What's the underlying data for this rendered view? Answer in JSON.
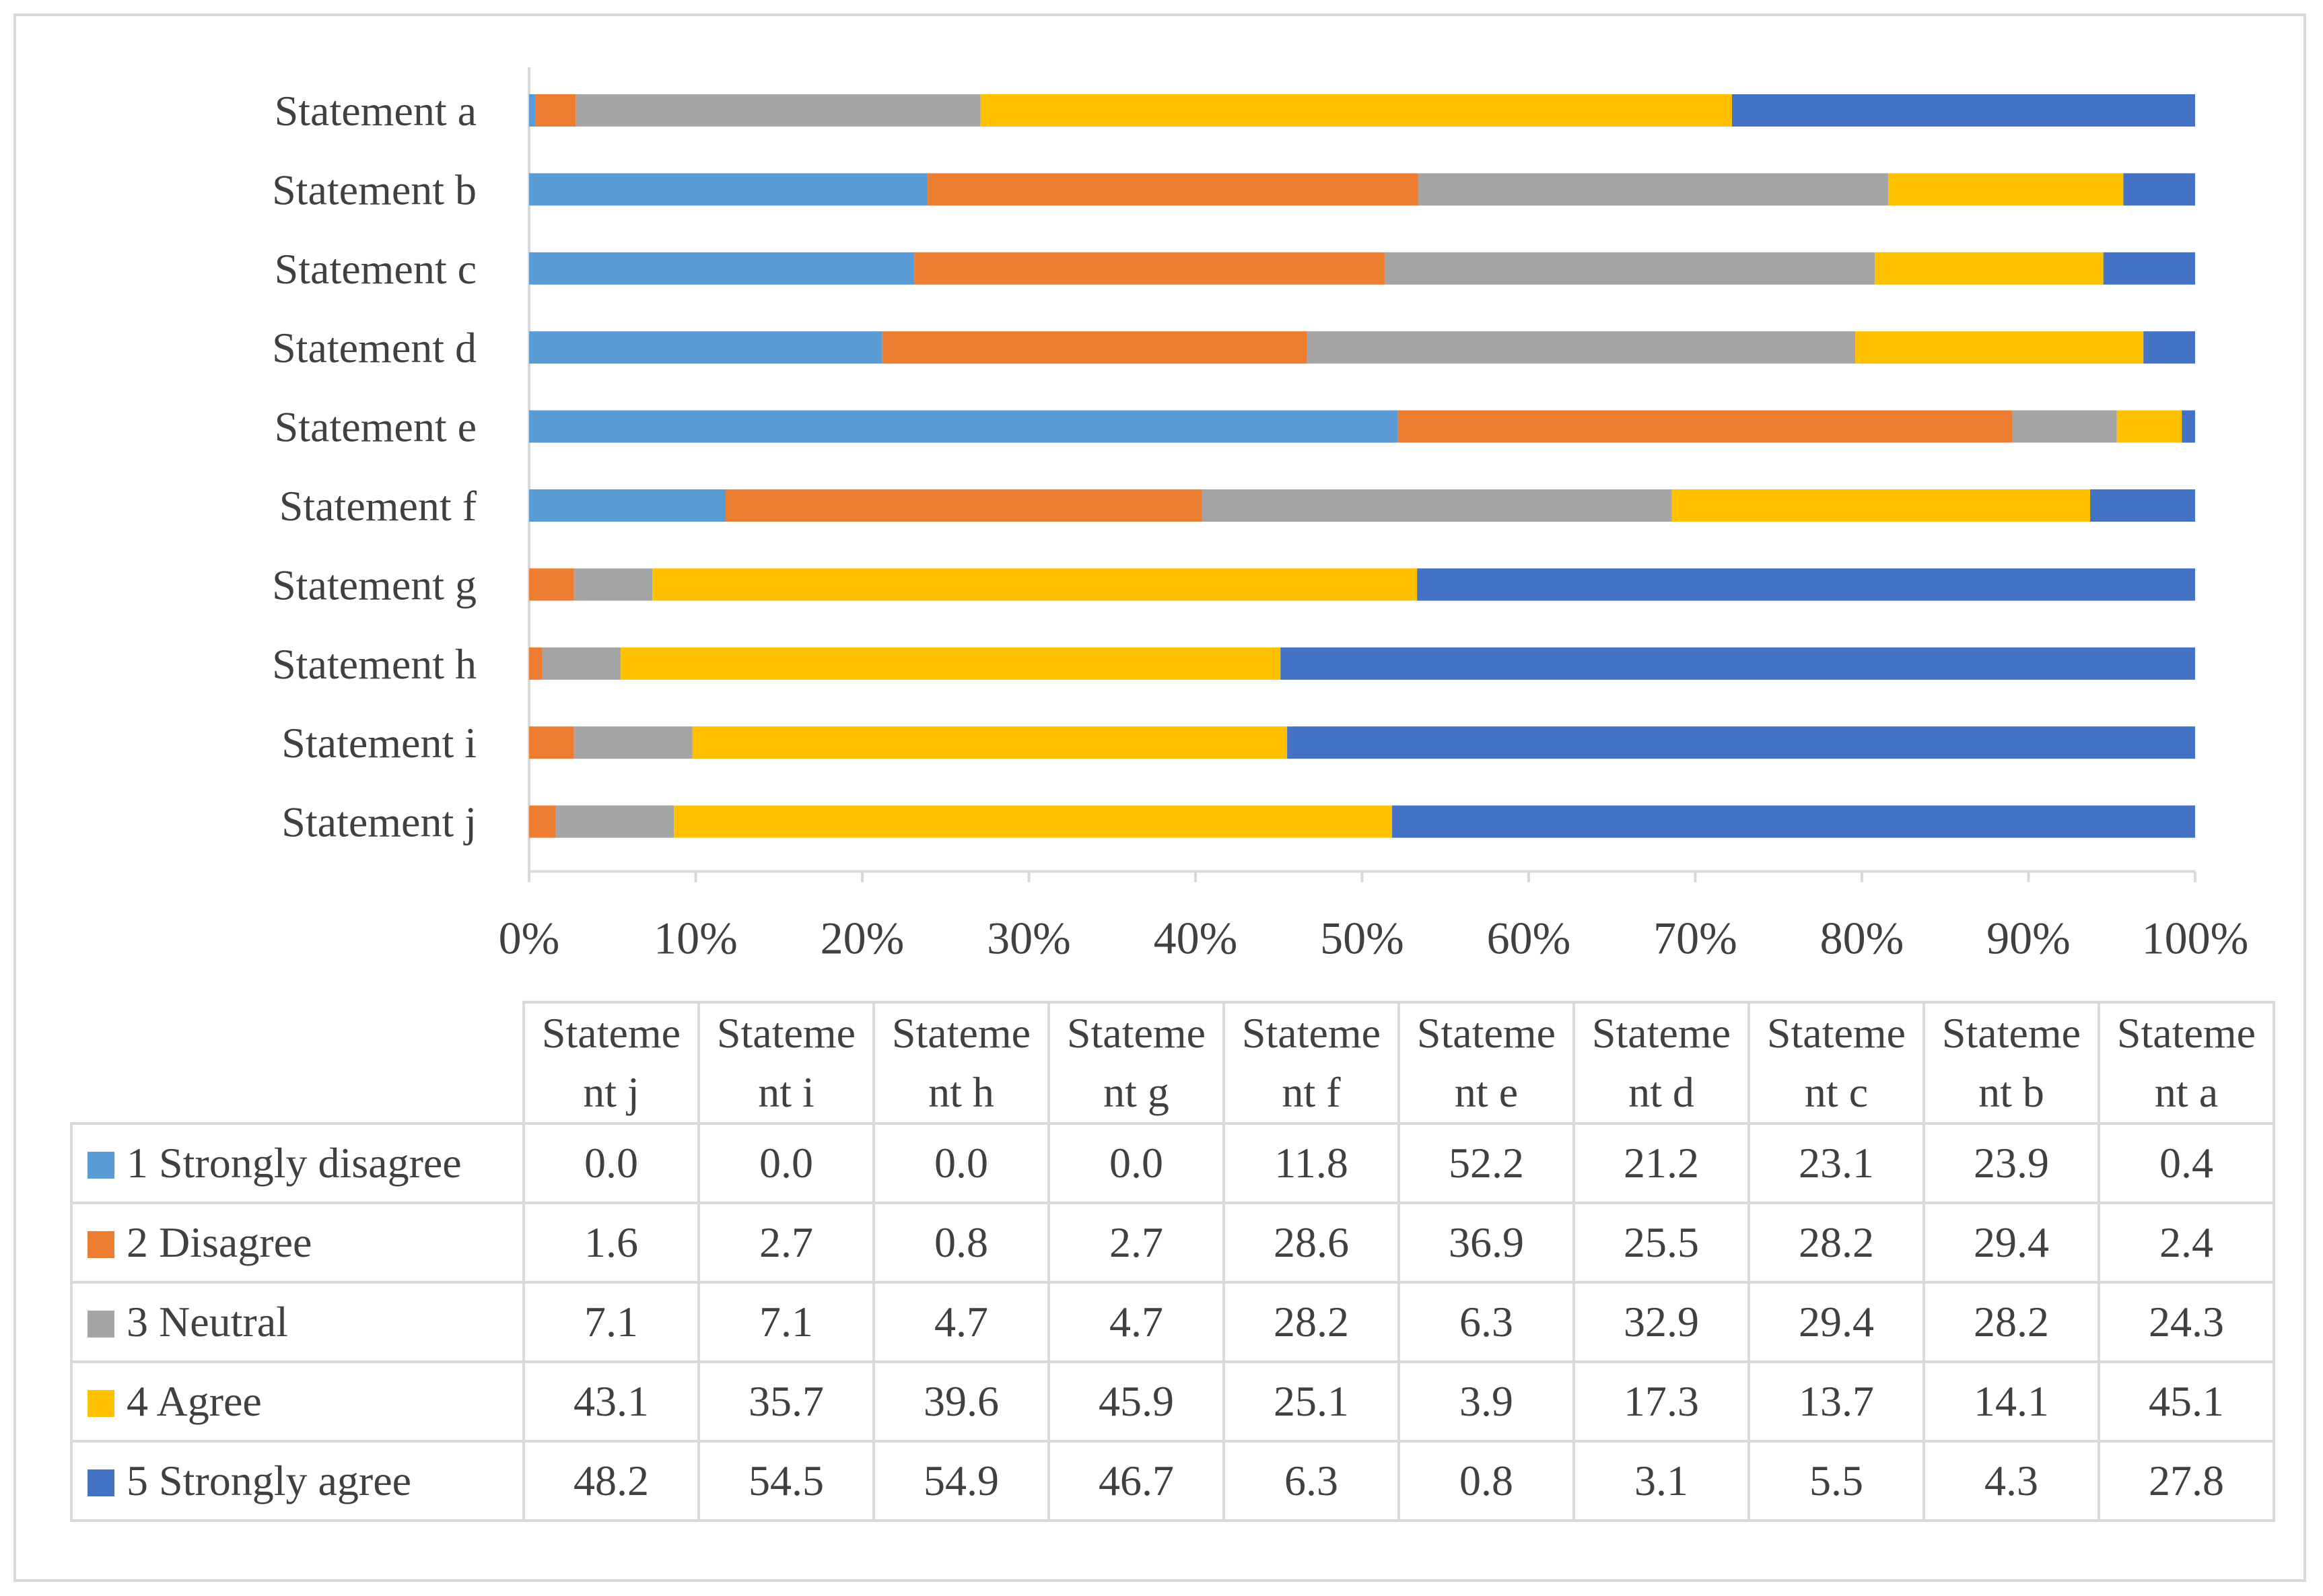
{
  "chart_data": {
    "type": "stacked-bar-100",
    "orientation": "horizontal",
    "categories": [
      "Statement a",
      "Statement b",
      "Statement c",
      "Statement d",
      "Statement e",
      "Statement f",
      "Statement g",
      "Statement h",
      "Statement i",
      "Statement j"
    ],
    "series": [
      {
        "name": "1 Strongly disagree",
        "color": "#5b9bd5",
        "values": [
          0.4,
          23.9,
          23.1,
          21.2,
          52.2,
          11.8,
          0.0,
          0.0,
          0.0,
          0.0
        ]
      },
      {
        "name": "2 Disagree",
        "color": "#ed7d31",
        "values": [
          2.4,
          29.4,
          28.2,
          25.5,
          36.9,
          28.6,
          2.7,
          0.8,
          2.7,
          1.6
        ]
      },
      {
        "name": "3 Neutral",
        "color": "#a5a5a5",
        "values": [
          24.3,
          28.2,
          29.4,
          32.9,
          6.3,
          28.2,
          4.7,
          4.7,
          7.1,
          7.1
        ]
      },
      {
        "name": "4 Agree",
        "color": "#ffc000",
        "values": [
          45.1,
          14.1,
          13.7,
          17.3,
          3.9,
          25.1,
          45.9,
          39.6,
          35.7,
          43.1
        ]
      },
      {
        "name": "5 Strongly agree",
        "color": "#4472c4",
        "values": [
          27.8,
          4.3,
          5.5,
          3.1,
          0.8,
          6.3,
          46.7,
          54.9,
          54.5,
          48.2
        ]
      }
    ],
    "x_ticks": [
      "0%",
      "10%",
      "20%",
      "30%",
      "40%",
      "50%",
      "60%",
      "70%",
      "80%",
      "90%",
      "100%"
    ],
    "xlim": [
      0,
      100
    ],
    "grid": false,
    "legend": "data-table-below",
    "table": {
      "columns": [
        "Stateme nt j",
        "Stateme nt i",
        "Stateme nt h",
        "Stateme nt g",
        "Stateme nt f",
        "Stateme nt e",
        "Stateme nt d",
        "Stateme nt c",
        "Stateme nt b",
        "Stateme nt a"
      ],
      "rows": [
        {
          "label": "1 Strongly disagree",
          "color": "#5b9bd5",
          "values": [
            "0.0",
            "0.0",
            "0.0",
            "0.0",
            "11.8",
            "52.2",
            "21.2",
            "23.1",
            "23.9",
            "0.4"
          ]
        },
        {
          "label": "2 Disagree",
          "color": "#ed7d31",
          "values": [
            "1.6",
            "2.7",
            "0.8",
            "2.7",
            "28.6",
            "36.9",
            "25.5",
            "28.2",
            "29.4",
            "2.4"
          ]
        },
        {
          "label": "3 Neutral",
          "color": "#a5a5a5",
          "values": [
            "7.1",
            "7.1",
            "4.7",
            "4.7",
            "28.2",
            "6.3",
            "32.9",
            "29.4",
            "28.2",
            "24.3"
          ]
        },
        {
          "label": "4 Agree",
          "color": "#ffc000",
          "values": [
            "43.1",
            "35.7",
            "39.6",
            "45.9",
            "25.1",
            "3.9",
            "17.3",
            "13.7",
            "14.1",
            "45.1"
          ]
        },
        {
          "label": "5 Strongly agree",
          "color": "#4472c4",
          "values": [
            "48.2",
            "54.5",
            "54.9",
            "46.7",
            "6.3",
            "0.8",
            "3.1",
            "5.5",
            "4.3",
            "27.8"
          ]
        }
      ]
    }
  }
}
